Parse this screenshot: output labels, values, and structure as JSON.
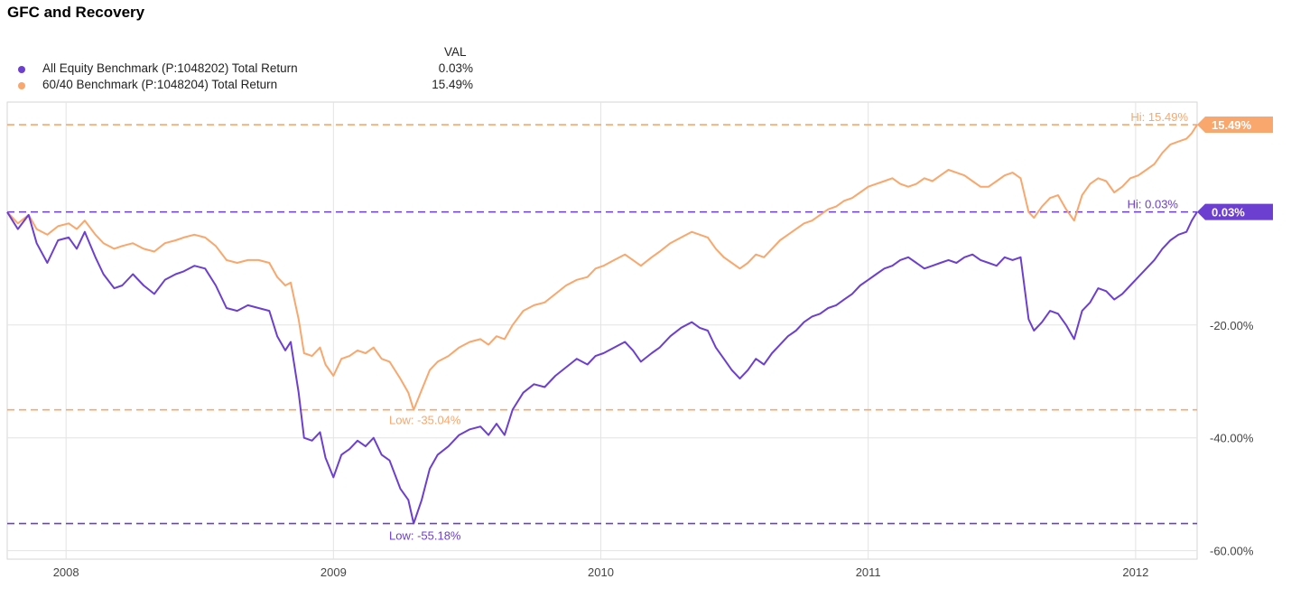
{
  "title": "GFC and Recovery",
  "legend": {
    "header": "VAL",
    "items": [
      {
        "name": "All Equity Benchmark (P:1048202) Total Return",
        "value": "0.03%",
        "color": "#6c3fd1"
      },
      {
        "name": "60/40 Benchmark (P:1048204) Total Return",
        "value": "15.49%",
        "color": "#f9a76c"
      }
    ]
  },
  "chart_data": {
    "type": "line",
    "title": "GFC and Recovery",
    "x_tick_labels": [
      "2008",
      "2009",
      "2010",
      "2011",
      "2012"
    ],
    "x_ticks": [
      2008.0,
      2009.0,
      2010.0,
      2011.0,
      2012.0
    ],
    "y_tick_labels": [
      "-20.00%",
      "-40.00%",
      "-60.00%"
    ],
    "y_ticks": [
      -20,
      -40,
      -60
    ],
    "xlim": [
      2007.78,
      2012.23
    ],
    "ylim": [
      -61.5,
      19.5
    ],
    "grid": true,
    "legend_position": "top-left",
    "series": [
      {
        "name": "All Equity Benchmark (P:1048202) Total Return",
        "color": "#6c3fd1",
        "last_value_label": "0.03%",
        "hi_label": "Hi: 0.03%",
        "low_label": "Low: -55.18%",
        "hi": 0.03,
        "low": -55.18,
        "points": [
          [
            2007.78,
            0.0
          ],
          [
            2007.82,
            -3.0
          ],
          [
            2007.86,
            -0.5
          ],
          [
            2007.89,
            -5.5
          ],
          [
            2007.93,
            -9.0
          ],
          [
            2007.97,
            -5.0
          ],
          [
            2008.01,
            -4.5
          ],
          [
            2008.04,
            -6.5
          ],
          [
            2008.07,
            -3.5
          ],
          [
            2008.11,
            -8.0
          ],
          [
            2008.14,
            -11.0
          ],
          [
            2008.18,
            -13.5
          ],
          [
            2008.21,
            -13.0
          ],
          [
            2008.25,
            -11.0
          ],
          [
            2008.29,
            -13.0
          ],
          [
            2008.33,
            -14.5
          ],
          [
            2008.37,
            -12.0
          ],
          [
            2008.41,
            -11.0
          ],
          [
            2008.44,
            -10.5
          ],
          [
            2008.48,
            -9.5
          ],
          [
            2008.52,
            -10.0
          ],
          [
            2008.56,
            -13.0
          ],
          [
            2008.6,
            -17.0
          ],
          [
            2008.64,
            -17.5
          ],
          [
            2008.68,
            -16.5
          ],
          [
            2008.72,
            -17.0
          ],
          [
            2008.76,
            -17.5
          ],
          [
            2008.79,
            -22.0
          ],
          [
            2008.82,
            -24.5
          ],
          [
            2008.84,
            -23.0
          ],
          [
            2008.87,
            -32.0
          ],
          [
            2008.89,
            -40.0
          ],
          [
            2008.92,
            -40.5
          ],
          [
            2008.95,
            -39.0
          ],
          [
            2008.97,
            -43.5
          ],
          [
            2009.0,
            -47.0
          ],
          [
            2009.03,
            -43.0
          ],
          [
            2009.06,
            -42.0
          ],
          [
            2009.09,
            -40.5
          ],
          [
            2009.12,
            -41.5
          ],
          [
            2009.15,
            -40.0
          ],
          [
            2009.18,
            -43.0
          ],
          [
            2009.21,
            -44.0
          ],
          [
            2009.25,
            -49.0
          ],
          [
            2009.28,
            -51.0
          ],
          [
            2009.3,
            -55.18
          ],
          [
            2009.33,
            -51.0
          ],
          [
            2009.36,
            -45.5
          ],
          [
            2009.39,
            -43.0
          ],
          [
            2009.43,
            -41.5
          ],
          [
            2009.47,
            -39.5
          ],
          [
            2009.51,
            -38.5
          ],
          [
            2009.55,
            -38.0
          ],
          [
            2009.58,
            -39.5
          ],
          [
            2009.61,
            -37.5
          ],
          [
            2009.64,
            -39.5
          ],
          [
            2009.67,
            -35.0
          ],
          [
            2009.71,
            -32.0
          ],
          [
            2009.75,
            -30.5
          ],
          [
            2009.79,
            -31.0
          ],
          [
            2009.83,
            -29.0
          ],
          [
            2009.87,
            -27.5
          ],
          [
            2009.91,
            -26.0
          ],
          [
            2009.95,
            -27.0
          ],
          [
            2009.98,
            -25.5
          ],
          [
            2010.01,
            -25.0
          ],
          [
            2010.05,
            -24.0
          ],
          [
            2010.09,
            -23.0
          ],
          [
            2010.12,
            -24.5
          ],
          [
            2010.15,
            -26.5
          ],
          [
            2010.19,
            -25.0
          ],
          [
            2010.22,
            -24.0
          ],
          [
            2010.26,
            -22.0
          ],
          [
            2010.3,
            -20.5
          ],
          [
            2010.34,
            -19.5
          ],
          [
            2010.37,
            -20.5
          ],
          [
            2010.4,
            -21.0
          ],
          [
            2010.43,
            -24.0
          ],
          [
            2010.46,
            -26.0
          ],
          [
            2010.49,
            -28.0
          ],
          [
            2010.52,
            -29.5
          ],
          [
            2010.55,
            -28.0
          ],
          [
            2010.58,
            -26.0
          ],
          [
            2010.61,
            -27.0
          ],
          [
            2010.64,
            -25.0
          ],
          [
            2010.67,
            -23.5
          ],
          [
            2010.7,
            -22.0
          ],
          [
            2010.73,
            -21.0
          ],
          [
            2010.76,
            -19.5
          ],
          [
            2010.79,
            -18.5
          ],
          [
            2010.82,
            -18.0
          ],
          [
            2010.85,
            -17.0
          ],
          [
            2010.88,
            -16.5
          ],
          [
            2010.91,
            -15.5
          ],
          [
            2010.94,
            -14.5
          ],
          [
            2010.97,
            -13.0
          ],
          [
            2011.0,
            -12.0
          ],
          [
            2011.03,
            -11.0
          ],
          [
            2011.06,
            -10.0
          ],
          [
            2011.09,
            -9.5
          ],
          [
            2011.12,
            -8.5
          ],
          [
            2011.15,
            -8.0
          ],
          [
            2011.18,
            -9.0
          ],
          [
            2011.21,
            -10.0
          ],
          [
            2011.24,
            -9.5
          ],
          [
            2011.27,
            -9.0
          ],
          [
            2011.3,
            -8.5
          ],
          [
            2011.33,
            -9.0
          ],
          [
            2011.36,
            -8.0
          ],
          [
            2011.39,
            -7.5
          ],
          [
            2011.42,
            -8.5
          ],
          [
            2011.45,
            -9.0
          ],
          [
            2011.48,
            -9.5
          ],
          [
            2011.51,
            -8.0
          ],
          [
            2011.54,
            -8.5
          ],
          [
            2011.57,
            -8.0
          ],
          [
            2011.6,
            -19.0
          ],
          [
            2011.62,
            -21.0
          ],
          [
            2011.65,
            -19.5
          ],
          [
            2011.68,
            -17.5
          ],
          [
            2011.71,
            -18.0
          ],
          [
            2011.74,
            -20.0
          ],
          [
            2011.77,
            -22.5
          ],
          [
            2011.8,
            -17.5
          ],
          [
            2011.83,
            -16.0
          ],
          [
            2011.86,
            -13.5
          ],
          [
            2011.89,
            -14.0
          ],
          [
            2011.92,
            -15.5
          ],
          [
            2011.95,
            -14.5
          ],
          [
            2011.98,
            -13.0
          ],
          [
            2012.01,
            -11.5
          ],
          [
            2012.04,
            -10.0
          ],
          [
            2012.07,
            -8.5
          ],
          [
            2012.1,
            -6.5
          ],
          [
            2012.13,
            -5.0
          ],
          [
            2012.16,
            -4.0
          ],
          [
            2012.19,
            -3.5
          ],
          [
            2012.21,
            -1.5
          ],
          [
            2012.23,
            0.03
          ]
        ]
      },
      {
        "name": "60/40 Benchmark (P:1048204) Total Return",
        "color": "#f9a76c",
        "last_value_label": "15.49%",
        "hi_label": "Hi: 15.49%",
        "low_label": "Low: -35.04%",
        "hi": 15.49,
        "low": -35.04,
        "points": [
          [
            2007.78,
            0.0
          ],
          [
            2007.82,
            -2.0
          ],
          [
            2007.86,
            -0.5
          ],
          [
            2007.89,
            -3.0
          ],
          [
            2007.93,
            -4.0
          ],
          [
            2007.97,
            -2.5
          ],
          [
            2008.01,
            -2.0
          ],
          [
            2008.04,
            -3.0
          ],
          [
            2008.07,
            -1.5
          ],
          [
            2008.11,
            -4.0
          ],
          [
            2008.14,
            -5.5
          ],
          [
            2008.18,
            -6.5
          ],
          [
            2008.21,
            -6.0
          ],
          [
            2008.25,
            -5.5
          ],
          [
            2008.29,
            -6.5
          ],
          [
            2008.33,
            -7.0
          ],
          [
            2008.37,
            -5.5
          ],
          [
            2008.41,
            -5.0
          ],
          [
            2008.44,
            -4.5
          ],
          [
            2008.48,
            -4.0
          ],
          [
            2008.52,
            -4.5
          ],
          [
            2008.56,
            -6.0
          ],
          [
            2008.6,
            -8.5
          ],
          [
            2008.64,
            -9.0
          ],
          [
            2008.68,
            -8.5
          ],
          [
            2008.72,
            -8.5
          ],
          [
            2008.76,
            -9.0
          ],
          [
            2008.79,
            -11.5
          ],
          [
            2008.82,
            -13.0
          ],
          [
            2008.84,
            -12.5
          ],
          [
            2008.87,
            -19.0
          ],
          [
            2008.89,
            -25.0
          ],
          [
            2008.92,
            -25.5
          ],
          [
            2008.95,
            -24.0
          ],
          [
            2008.97,
            -27.0
          ],
          [
            2009.0,
            -29.0
          ],
          [
            2009.03,
            -26.0
          ],
          [
            2009.06,
            -25.5
          ],
          [
            2009.09,
            -24.5
          ],
          [
            2009.12,
            -25.0
          ],
          [
            2009.15,
            -24.0
          ],
          [
            2009.18,
            -26.0
          ],
          [
            2009.21,
            -26.5
          ],
          [
            2009.25,
            -29.5
          ],
          [
            2009.28,
            -32.0
          ],
          [
            2009.3,
            -35.04
          ],
          [
            2009.33,
            -31.5
          ],
          [
            2009.36,
            -28.0
          ],
          [
            2009.39,
            -26.5
          ],
          [
            2009.43,
            -25.5
          ],
          [
            2009.47,
            -24.0
          ],
          [
            2009.51,
            -23.0
          ],
          [
            2009.55,
            -22.5
          ],
          [
            2009.58,
            -23.5
          ],
          [
            2009.61,
            -22.0
          ],
          [
            2009.64,
            -22.5
          ],
          [
            2009.67,
            -20.0
          ],
          [
            2009.71,
            -17.5
          ],
          [
            2009.75,
            -16.5
          ],
          [
            2009.79,
            -16.0
          ],
          [
            2009.83,
            -14.5
          ],
          [
            2009.87,
            -13.0
          ],
          [
            2009.91,
            -12.0
          ],
          [
            2009.95,
            -11.5
          ],
          [
            2009.98,
            -10.0
          ],
          [
            2010.01,
            -9.5
          ],
          [
            2010.05,
            -8.5
          ],
          [
            2010.09,
            -7.5
          ],
          [
            2010.12,
            -8.5
          ],
          [
            2010.15,
            -9.5
          ],
          [
            2010.19,
            -8.0
          ],
          [
            2010.22,
            -7.0
          ],
          [
            2010.26,
            -5.5
          ],
          [
            2010.3,
            -4.5
          ],
          [
            2010.34,
            -3.5
          ],
          [
            2010.37,
            -4.0
          ],
          [
            2010.4,
            -4.5
          ],
          [
            2010.43,
            -6.5
          ],
          [
            2010.46,
            -8.0
          ],
          [
            2010.49,
            -9.0
          ],
          [
            2010.52,
            -10.0
          ],
          [
            2010.55,
            -9.0
          ],
          [
            2010.58,
            -7.5
          ],
          [
            2010.61,
            -8.0
          ],
          [
            2010.64,
            -6.5
          ],
          [
            2010.67,
            -5.0
          ],
          [
            2010.7,
            -4.0
          ],
          [
            2010.73,
            -3.0
          ],
          [
            2010.76,
            -2.0
          ],
          [
            2010.79,
            -1.5
          ],
          [
            2010.82,
            -0.5
          ],
          [
            2010.85,
            0.5
          ],
          [
            2010.88,
            1.0
          ],
          [
            2010.91,
            2.0
          ],
          [
            2010.94,
            2.5
          ],
          [
            2010.97,
            3.5
          ],
          [
            2011.0,
            4.5
          ],
          [
            2011.03,
            5.0
          ],
          [
            2011.06,
            5.5
          ],
          [
            2011.09,
            6.0
          ],
          [
            2011.12,
            5.0
          ],
          [
            2011.15,
            4.5
          ],
          [
            2011.18,
            5.0
          ],
          [
            2011.21,
            6.0
          ],
          [
            2011.24,
            5.5
          ],
          [
            2011.27,
            6.5
          ],
          [
            2011.3,
            7.5
          ],
          [
            2011.33,
            7.0
          ],
          [
            2011.36,
            6.5
          ],
          [
            2011.39,
            5.5
          ],
          [
            2011.42,
            4.5
          ],
          [
            2011.45,
            4.5
          ],
          [
            2011.48,
            5.5
          ],
          [
            2011.51,
            6.5
          ],
          [
            2011.54,
            7.0
          ],
          [
            2011.57,
            6.0
          ],
          [
            2011.6,
            0.0
          ],
          [
            2011.62,
            -1.0
          ],
          [
            2011.65,
            1.0
          ],
          [
            2011.68,
            2.5
          ],
          [
            2011.71,
            3.0
          ],
          [
            2011.74,
            0.5
          ],
          [
            2011.77,
            -1.5
          ],
          [
            2011.8,
            3.0
          ],
          [
            2011.83,
            5.0
          ],
          [
            2011.86,
            6.0
          ],
          [
            2011.89,
            5.5
          ],
          [
            2011.92,
            3.5
          ],
          [
            2011.95,
            4.5
          ],
          [
            2011.98,
            6.0
          ],
          [
            2012.01,
            6.5
          ],
          [
            2012.04,
            7.5
          ],
          [
            2012.07,
            8.5
          ],
          [
            2012.1,
            10.5
          ],
          [
            2012.13,
            12.0
          ],
          [
            2012.16,
            12.5
          ],
          [
            2012.19,
            13.0
          ],
          [
            2012.21,
            14.0
          ],
          [
            2012.23,
            15.49
          ]
        ]
      }
    ]
  }
}
